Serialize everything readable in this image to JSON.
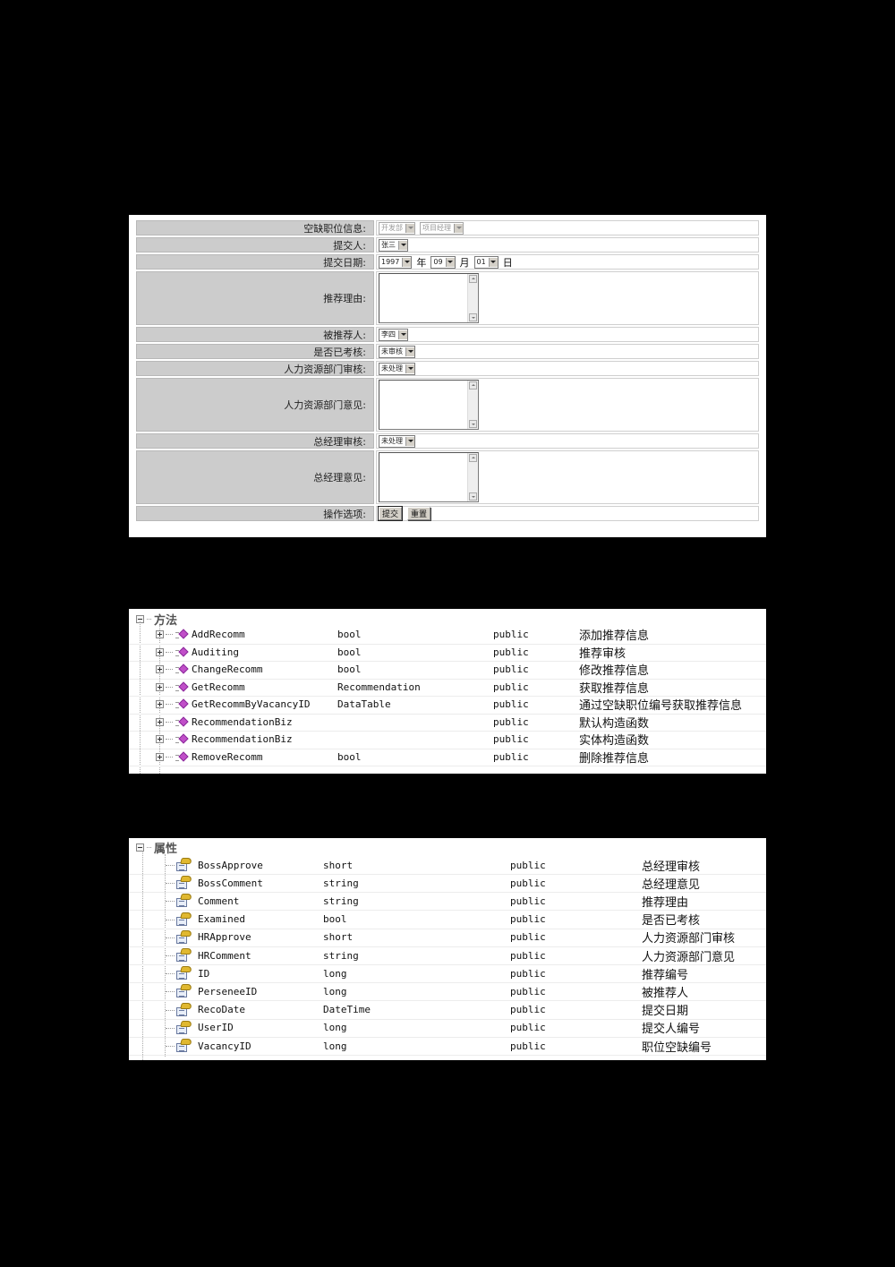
{
  "form": {
    "rows": [
      {
        "label": "空缺职位信息:",
        "selects": [
          "开发部",
          "项目经理"
        ],
        "disabled": true
      },
      {
        "label": "提交人:",
        "select": "张三"
      },
      {
        "label": "提交日期:",
        "year": "1997",
        "year_unit": "年",
        "month": "09",
        "month_unit": "月",
        "day": "01",
        "day_unit": "日"
      },
      {
        "label": "推荐理由:",
        "textarea": ""
      },
      {
        "label": "被推荐人:",
        "select": "李四"
      },
      {
        "label": "是否已考核:",
        "select": "未审核"
      },
      {
        "label": "人力资源部门审核:",
        "select": "未处理"
      },
      {
        "label": "人力资源部门意见:",
        "textarea": ""
      },
      {
        "label": "总经理审核:",
        "select": "未处理"
      },
      {
        "label": "总经理意见:",
        "textarea": ""
      },
      {
        "label": "操作选项:",
        "buttons": [
          "提交",
          "重置"
        ]
      }
    ]
  },
  "methods": {
    "title": "方法",
    "items": [
      {
        "name": "AddRecomm",
        "type": "bool",
        "access": "public",
        "desc": "添加推荐信息"
      },
      {
        "name": "Auditing",
        "type": "bool",
        "access": "public",
        "desc": "推荐审核"
      },
      {
        "name": "ChangeRecomm",
        "type": "bool",
        "access": "public",
        "desc": "修改推荐信息"
      },
      {
        "name": "GetRecomm",
        "type": "Recommendation",
        "access": "public",
        "desc": "获取推荐信息"
      },
      {
        "name": "GetRecommByVacancyID",
        "type": "DataTable",
        "access": "public",
        "desc": "通过空缺职位编号获取推荐信息"
      },
      {
        "name": "RecommendationBiz",
        "type": "",
        "access": "public",
        "desc": "默认构造函数"
      },
      {
        "name": "RecommendationBiz",
        "type": "",
        "access": "public",
        "desc": "实体构造函数"
      },
      {
        "name": "RemoveRecomm",
        "type": "bool",
        "access": "public",
        "desc": "删除推荐信息"
      }
    ]
  },
  "properties": {
    "title": "属性",
    "items": [
      {
        "name": "BossApprove",
        "type": "short",
        "access": "public",
        "desc": "总经理审核"
      },
      {
        "name": "BossComment",
        "type": "string",
        "access": "public",
        "desc": "总经理意见"
      },
      {
        "name": "Comment",
        "type": "string",
        "access": "public",
        "desc": "推荐理由"
      },
      {
        "name": "Examined",
        "type": "bool",
        "access": "public",
        "desc": "是否已考核"
      },
      {
        "name": "HRApprove",
        "type": "short",
        "access": "public",
        "desc": "人力资源部门审核"
      },
      {
        "name": "HRComment",
        "type": "string",
        "access": "public",
        "desc": "人力资源部门意见"
      },
      {
        "name": "ID",
        "type": "long",
        "access": "public",
        "desc": "推荐编号"
      },
      {
        "name": "PerseneeID",
        "type": "long",
        "access": "public",
        "desc": "被推荐人"
      },
      {
        "name": "RecoDate",
        "type": "DateTime",
        "access": "public",
        "desc": "提交日期"
      },
      {
        "name": "UserID",
        "type": "long",
        "access": "public",
        "desc": "提交人编号"
      },
      {
        "name": "VacancyID",
        "type": "long",
        "access": "public",
        "desc": "职位空缺编号"
      }
    ]
  }
}
